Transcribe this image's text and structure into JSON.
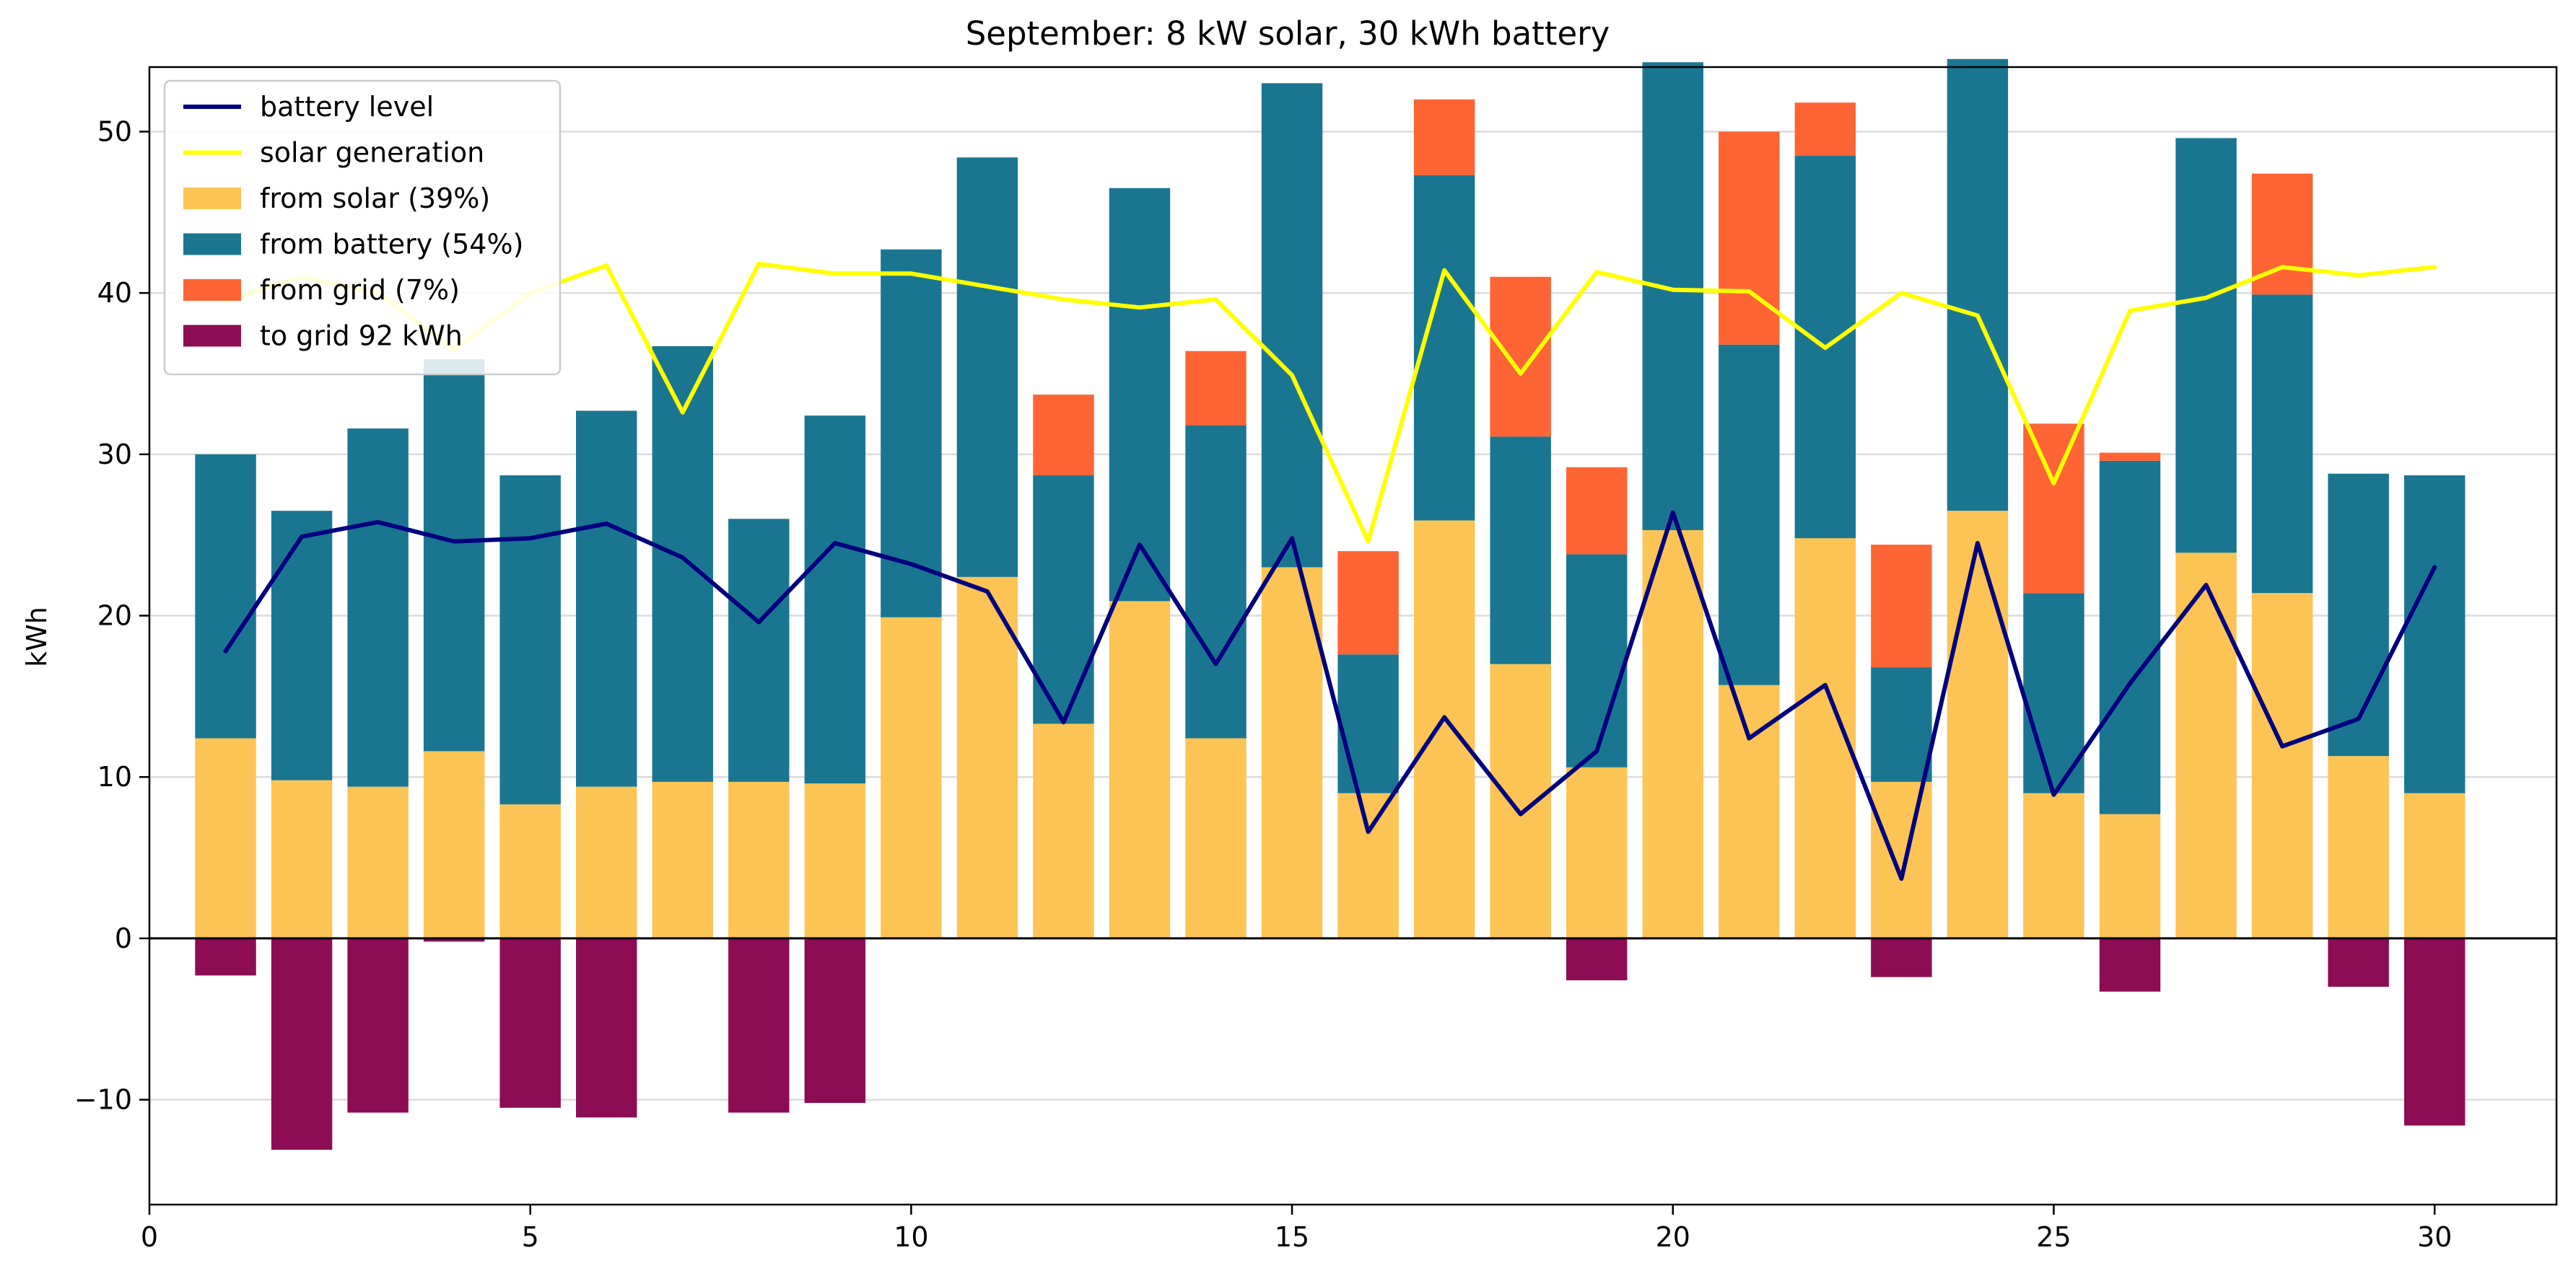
{
  "chart_data": {
    "type": "bar",
    "title": "September: 8 kW solar, 30 kWh battery",
    "xlabel": "",
    "ylabel": "kWh",
    "xlim": [
      0,
      31.6
    ],
    "ylim": [
      -16.5,
      54
    ],
    "x_ticks": [
      0,
      5,
      10,
      15,
      20,
      25,
      30
    ],
    "y_ticks": [
      -10,
      0,
      10,
      20,
      30,
      40,
      50
    ],
    "grid": "horizontal",
    "legend_position": "top-left",
    "days": [
      1,
      2,
      3,
      4,
      5,
      6,
      7,
      8,
      9,
      10,
      11,
      12,
      13,
      14,
      15,
      16,
      17,
      18,
      19,
      20,
      21,
      22,
      23,
      24,
      25,
      26,
      27,
      28,
      29,
      30
    ],
    "series": [
      {
        "name": "from solar (39%)",
        "kind": "bar",
        "color": "#fcc454",
        "values": [
          12.4,
          9.8,
          9.4,
          11.6,
          8.3,
          9.4,
          9.7,
          9.7,
          9.6,
          19.9,
          22.4,
          13.3,
          20.9,
          12.4,
          23.0,
          9.0,
          25.9,
          17.0,
          10.6,
          25.3,
          15.7,
          24.8,
          9.7,
          26.5,
          9.0,
          7.7,
          23.9,
          21.4,
          11.3,
          9.0
        ]
      },
      {
        "name": "from battery (54%)",
        "kind": "bar",
        "color": "#1a7690",
        "values": [
          17.6,
          16.7,
          22.2,
          24.3,
          20.4,
          23.3,
          27.0,
          16.3,
          22.8,
          22.8,
          26.0,
          15.4,
          25.6,
          19.4,
          30.0,
          8.6,
          21.4,
          14.1,
          13.2,
          29.0,
          21.1,
          23.7,
          7.1,
          28.0,
          12.4,
          21.9,
          25.7,
          18.5,
          17.5,
          19.7
        ]
      },
      {
        "name": "from grid (7%)",
        "kind": "bar",
        "color": "#ff6435",
        "values": [
          0,
          0,
          0,
          0,
          0,
          0,
          0,
          0,
          0,
          0,
          0,
          5.0,
          0,
          4.6,
          0,
          6.4,
          4.7,
          9.9,
          5.4,
          0,
          13.2,
          3.3,
          7.6,
          0,
          10.5,
          0.5,
          0,
          7.5,
          0,
          0
        ]
      },
      {
        "name": "to grid 92 kWh",
        "kind": "bar",
        "color": "#8c0d54",
        "values": [
          -2.3,
          -13.1,
          -10.8,
          -0.2,
          -10.5,
          -11.1,
          0,
          -10.8,
          -10.2,
          0,
          0,
          0,
          0,
          0,
          0,
          0,
          0,
          0,
          -2.6,
          0,
          0,
          0,
          -2.4,
          0,
          0,
          -3.3,
          0,
          0,
          -3.0,
          -11.6
        ]
      },
      {
        "name": "battery level",
        "kind": "line",
        "color": "#00007f",
        "values": [
          17.8,
          24.9,
          25.8,
          24.6,
          24.8,
          25.7,
          23.6,
          19.6,
          24.5,
          23.2,
          21.5,
          13.4,
          24.4,
          17.0,
          24.8,
          6.6,
          13.7,
          7.7,
          11.6,
          26.4,
          12.4,
          15.7,
          3.7,
          24.5,
          8.9,
          15.8,
          21.9,
          11.9,
          13.6,
          23.0
        ]
      },
      {
        "name": "solar generation",
        "kind": "line",
        "color": "#ffff00",
        "values": [
          39.5,
          41.0,
          40.0,
          36.5,
          40.0,
          41.7,
          32.6,
          41.8,
          41.2,
          41.2,
          40.4,
          39.6,
          39.1,
          39.6,
          34.9,
          24.6,
          41.4,
          35.0,
          41.3,
          40.2,
          40.1,
          36.6,
          40.0,
          38.6,
          28.2,
          38.9,
          39.7,
          41.6,
          41.1,
          41.6
        ]
      }
    ]
  }
}
